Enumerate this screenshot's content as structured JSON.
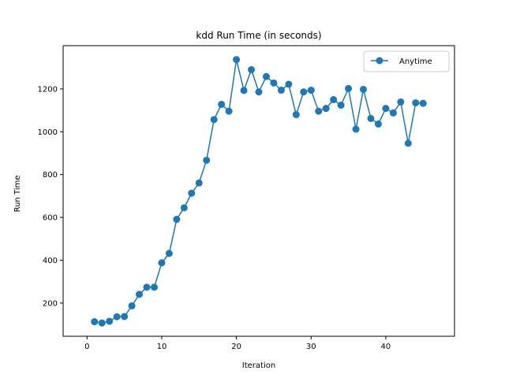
{
  "chart_data": {
    "type": "line",
    "title": "kdd Run Time (in seconds)",
    "xlabel": "Iteration",
    "ylabel": "Run Time",
    "xlim": [
      -3.2,
      49.2
    ],
    "ylim": [
      45,
      1402
    ],
    "xticks": [
      0,
      10,
      20,
      30,
      40
    ],
    "yticks": [
      200,
      400,
      600,
      800,
      1000,
      1200
    ],
    "grid": false,
    "legend_position": "upper right",
    "series": [
      {
        "name": "Anytime",
        "color": "#1f77b4",
        "marker": "circle",
        "x": [
          1,
          2,
          3,
          4,
          5,
          6,
          7,
          8,
          9,
          10,
          11,
          12,
          13,
          14,
          15,
          16,
          17,
          18,
          19,
          20,
          21,
          22,
          23,
          24,
          25,
          26,
          27,
          28,
          29,
          30,
          31,
          32,
          33,
          34,
          35,
          36,
          37,
          38,
          39,
          40,
          41,
          42,
          43,
          44,
          45
        ],
        "y": [
          113,
          107,
          115,
          136,
          137,
          187,
          241,
          274,
          274,
          388,
          432,
          591,
          645,
          713,
          761,
          867,
          1057,
          1128,
          1096,
          1337,
          1193,
          1290,
          1186,
          1258,
          1228,
          1194,
          1222,
          1080,
          1186,
          1194,
          1096,
          1109,
          1150,
          1124,
          1202,
          1012,
          1198,
          1062,
          1036,
          1109,
          1088,
          1139,
          946,
          1135,
          1133
        ]
      }
    ]
  }
}
